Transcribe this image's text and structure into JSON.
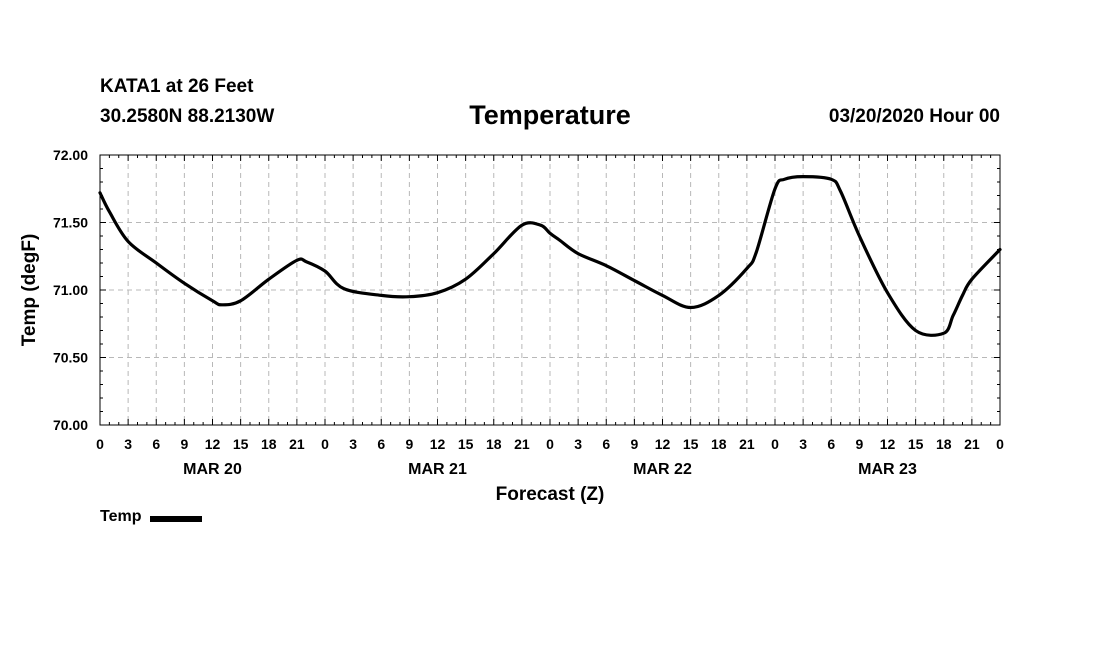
{
  "header": {
    "station": "KATA1 at 26 Feet",
    "coords": "30.2580N 88.2130W",
    "runtime": "03/20/2020 Hour 00"
  },
  "chart_data": {
    "type": "line",
    "title": "Temperature",
    "xlabel": "Forecast (Z)",
    "ylabel": "Temp (degF)",
    "x_unit": "forecast hour from 03/20/2020 00Z",
    "xlim": [
      0,
      96
    ],
    "ylim": [
      70.0,
      72.0
    ],
    "yticks": [
      70.0,
      70.5,
      71.0,
      71.5,
      72.0
    ],
    "ytick_labels": [
      "70.00",
      "70.50",
      "71.00",
      "71.50",
      "72.00"
    ],
    "xticks": [
      0,
      3,
      6,
      9,
      12,
      15,
      18,
      21,
      24,
      27,
      30,
      33,
      36,
      39,
      42,
      45,
      48,
      51,
      54,
      57,
      60,
      63,
      66,
      69,
      72,
      75,
      78,
      81,
      84,
      87,
      90,
      93,
      96
    ],
    "xtick_labels": [
      "0",
      "3",
      "6",
      "9",
      "12",
      "15",
      "18",
      "21",
      "0",
      "3",
      "6",
      "9",
      "12",
      "15",
      "18",
      "21",
      "0",
      "3",
      "6",
      "9",
      "12",
      "15",
      "18",
      "21",
      "0",
      "3",
      "6",
      "9",
      "12",
      "15",
      "18",
      "21",
      "0"
    ],
    "day_labels": [
      {
        "x": 12,
        "label": "MAR 20"
      },
      {
        "x": 36,
        "label": "MAR 21"
      },
      {
        "x": 60,
        "label": "MAR 22"
      },
      {
        "x": 84,
        "label": "MAR 23"
      }
    ],
    "grid": true,
    "legend_placement": "bottom-left",
    "series": [
      {
        "name": "Temp",
        "color": "#000000",
        "x": [
          0,
          1,
          3,
          6,
          9,
          12,
          13,
          15,
          18,
          21,
          22,
          24,
          26,
          30,
          33,
          36,
          39,
          42,
          45,
          47,
          48,
          49,
          51,
          54,
          57,
          60,
          63,
          66,
          69,
          70,
          72,
          73,
          75,
          78,
          79,
          81,
          84,
          87,
          90,
          91,
          92,
          93,
          96
        ],
        "y": [
          71.72,
          71.58,
          71.36,
          71.2,
          71.05,
          70.92,
          70.89,
          70.92,
          71.08,
          71.22,
          71.21,
          71.14,
          71.01,
          70.96,
          70.95,
          70.98,
          71.08,
          71.27,
          71.48,
          71.48,
          71.42,
          71.37,
          71.27,
          71.18,
          71.07,
          70.96,
          70.87,
          70.96,
          71.16,
          71.28,
          71.75,
          71.82,
          71.84,
          71.82,
          71.73,
          71.4,
          70.98,
          70.7,
          70.68,
          70.81,
          70.96,
          71.08,
          71.3
        ]
      }
    ]
  }
}
